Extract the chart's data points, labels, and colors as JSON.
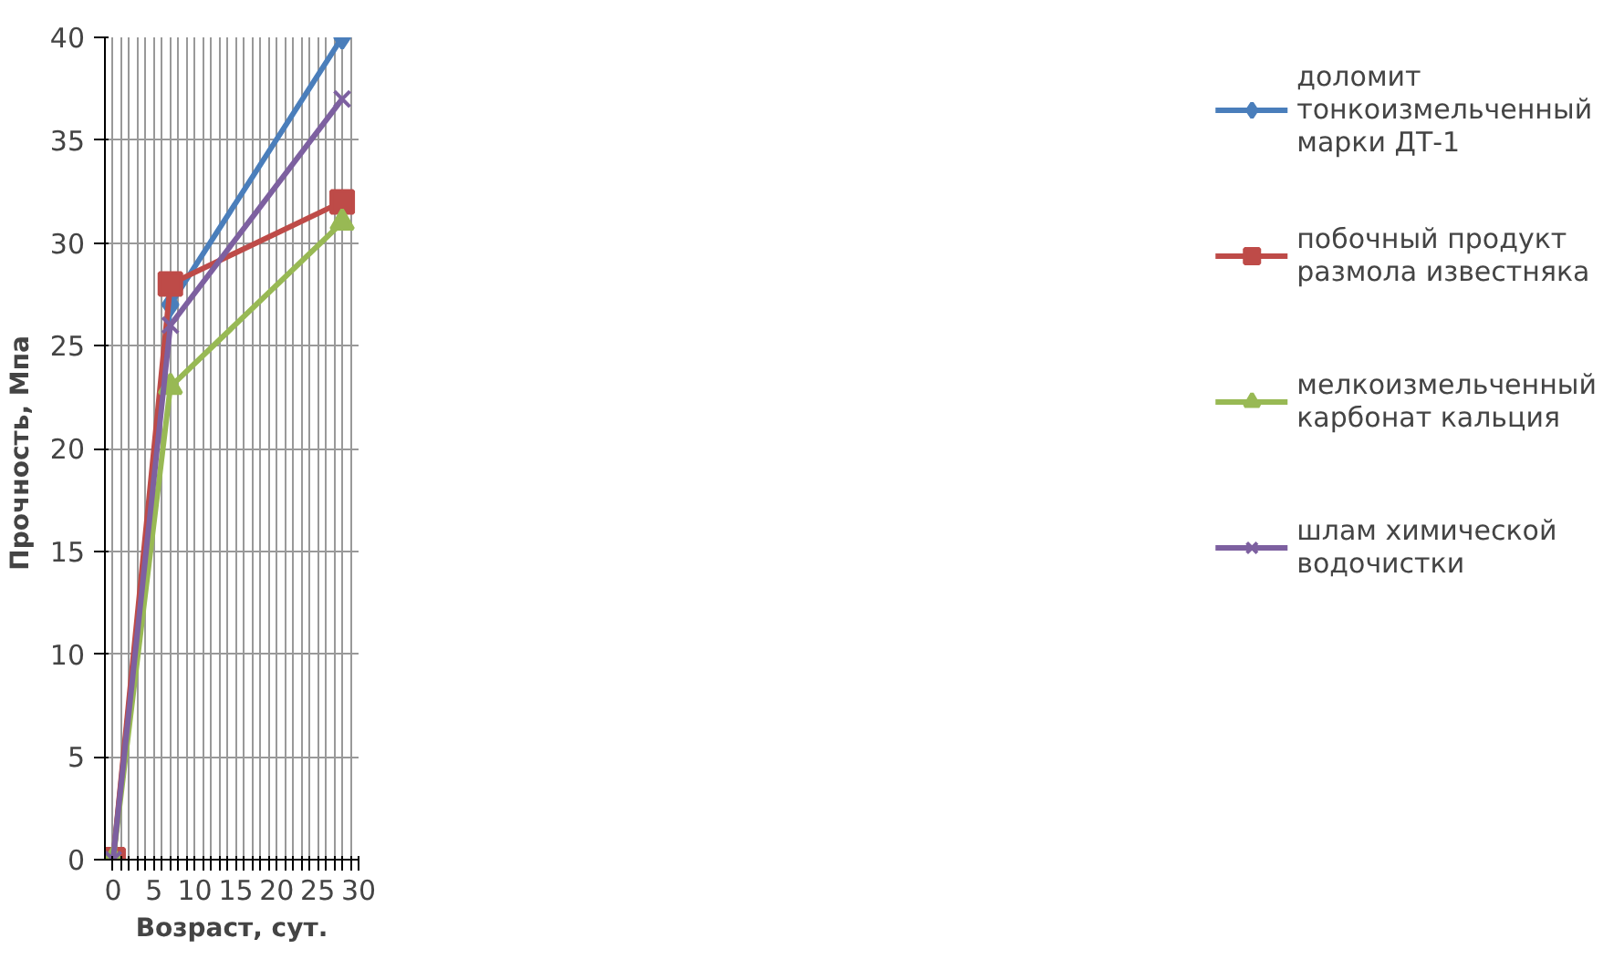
{
  "chart_data": {
    "type": "line",
    "xlabel": "Возраст, сут.",
    "ylabel": "Прочность,  Мпа",
    "x": [
      0,
      7,
      28
    ],
    "series": [
      {
        "name": "доломит тонкоизмельченный марки ДТ-1",
        "color": "#4a7ebb",
        "values": [
          0,
          27,
          40
        ],
        "marker": "diamond"
      },
      {
        "name": "побочный продукт размола известняка",
        "color": "#be4b48",
        "values": [
          0,
          28,
          32
        ],
        "marker": "square"
      },
      {
        "name": "мелкоизмельченный карбонат кальция",
        "color": "#98b954",
        "values": [
          0,
          23,
          31
        ],
        "marker": "triangle"
      },
      {
        "name": "шлам химической водочистки",
        "color": "#7d60a0",
        "values": [
          0,
          26,
          37
        ],
        "marker": "cross"
      }
    ],
    "xlim": [
      -1,
      30
    ],
    "ylim": [
      0,
      40
    ],
    "xticks": [
      0,
      {
        "value": 1,
        "label": null
      },
      {
        "value": 2,
        "label": null
      },
      {
        "value": 3,
        "label": null
      },
      {
        "value": 4,
        "label": null
      },
      5,
      {
        "value": 6,
        "label": null
      },
      {
        "value": 7,
        "label": null
      },
      {
        "value": 8,
        "label": null
      },
      {
        "value": 9,
        "label": null
      },
      10,
      {
        "value": 11,
        "label": null
      },
      {
        "value": 12,
        "label": null
      },
      {
        "value": 13,
        "label": null
      },
      {
        "value": 14,
        "label": null
      },
      15,
      {
        "value": 16,
        "label": null
      },
      {
        "value": 17,
        "label": null
      },
      {
        "value": 18,
        "label": null
      },
      {
        "value": 19,
        "label": null
      },
      20,
      {
        "value": 21,
        "label": null
      },
      {
        "value": 22,
        "label": null
      },
      {
        "value": 23,
        "label": null
      },
      {
        "value": 24,
        "label": null
      },
      25,
      {
        "value": 26,
        "label": null
      },
      {
        "value": 27,
        "label": null
      },
      {
        "value": 28,
        "label": null
      },
      {
        "value": 29,
        "label": null
      },
      30
    ],
    "yticks": [
      0,
      5,
      10,
      15,
      20,
      25,
      30,
      35,
      40
    ],
    "grid": true,
    "legend": "right",
    "line_style": "solid"
  }
}
